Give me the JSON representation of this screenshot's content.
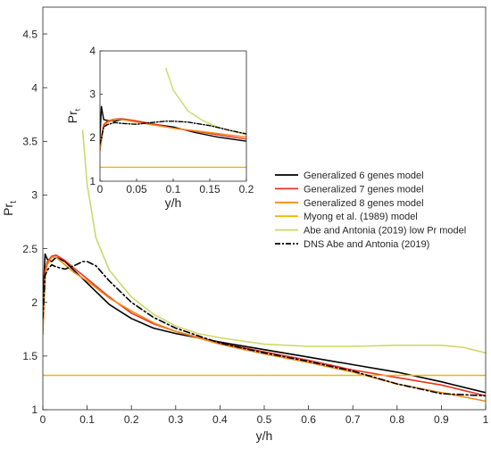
{
  "chart_data": [
    {
      "type": "line",
      "role": "main",
      "xlabel": "y/h",
      "ylabel": "Pr",
      "ylabel_sub": "t",
      "xlim": [
        0,
        1
      ],
      "ylim": [
        1,
        4.75
      ],
      "xticks": [
        "0",
        "0.1",
        "0.2",
        "0.3",
        "0.4",
        "0.5",
        "0.6",
        "0.7",
        "0.8",
        "0.9",
        "1"
      ],
      "yticks": [
        "1",
        "1.5",
        "2",
        "2.5",
        "3",
        "3.5",
        "4",
        "4.5"
      ],
      "grid": false,
      "legend_position": "center-right",
      "series": [
        {
          "name": "Generalized 6 genes model",
          "color": "#000000",
          "dash": "solid",
          "x": [
            0,
            0.005,
            0.01,
            0.02,
            0.03,
            0.05,
            0.07,
            0.1,
            0.15,
            0.2,
            0.25,
            0.3,
            0.4,
            0.5,
            0.6,
            0.7,
            0.8,
            0.9,
            1.0
          ],
          "y": [
            2.0,
            2.45,
            2.4,
            2.38,
            2.42,
            2.38,
            2.3,
            2.18,
            1.98,
            1.85,
            1.76,
            1.71,
            1.63,
            1.56,
            1.49,
            1.42,
            1.35,
            1.26,
            1.16
          ]
        },
        {
          "name": "Generalized 7 genes model",
          "color": "#e8321f",
          "dash": "solid",
          "x": [
            0,
            0.005,
            0.01,
            0.02,
            0.03,
            0.05,
            0.07,
            0.1,
            0.15,
            0.2,
            0.25,
            0.3,
            0.4,
            0.5,
            0.6,
            0.7,
            0.8,
            0.9,
            1.0
          ],
          "y": [
            1.8,
            2.3,
            2.38,
            2.43,
            2.44,
            2.39,
            2.32,
            2.22,
            2.05,
            1.9,
            1.8,
            1.73,
            1.62,
            1.54,
            1.46,
            1.37,
            1.3,
            1.23,
            1.13
          ]
        },
        {
          "name": "Generalized 8 genes model",
          "color": "#f28a1a",
          "dash": "solid",
          "x": [
            0,
            0.005,
            0.01,
            0.02,
            0.03,
            0.05,
            0.07,
            0.1,
            0.15,
            0.2,
            0.25,
            0.3,
            0.4,
            0.5,
            0.6,
            0.7,
            0.8,
            0.9,
            1.0
          ],
          "y": [
            1.7,
            2.25,
            2.35,
            2.42,
            2.42,
            2.35,
            2.28,
            2.2,
            2.04,
            1.92,
            1.81,
            1.73,
            1.61,
            1.52,
            1.44,
            1.35,
            1.24,
            1.16,
            1.08
          ]
        },
        {
          "name": "Myong et al. (1989) model",
          "color": "#efb800",
          "dash": "solid",
          "x": [
            0,
            1
          ],
          "y": [
            1.32,
            1.32
          ]
        },
        {
          "name": "Abe and Antonia (2019) low Pr model",
          "color": "#ccd96a",
          "dash": "solid",
          "x": [
            0.09,
            0.1,
            0.12,
            0.15,
            0.2,
            0.25,
            0.3,
            0.35,
            0.4,
            0.45,
            0.5,
            0.6,
            0.7,
            0.8,
            0.9,
            0.95,
            1.0
          ],
          "y": [
            3.6,
            3.1,
            2.6,
            2.3,
            2.05,
            1.89,
            1.78,
            1.71,
            1.67,
            1.64,
            1.61,
            1.59,
            1.59,
            1.6,
            1.6,
            1.58,
            1.53
          ]
        },
        {
          "name": "DNS Abe and Antonia (2019)",
          "color": "#000000",
          "dash": "dashdot",
          "x": [
            0,
            0.005,
            0.01,
            0.02,
            0.03,
            0.05,
            0.07,
            0.09,
            0.1,
            0.12,
            0.15,
            0.2,
            0.25,
            0.3,
            0.4,
            0.5,
            0.6,
            0.7,
            0.8,
            0.9,
            1.0
          ],
          "y": [
            1.85,
            2.25,
            2.3,
            2.35,
            2.33,
            2.31,
            2.34,
            2.38,
            2.38,
            2.34,
            2.2,
            2.0,
            1.86,
            1.76,
            1.62,
            1.53,
            1.45,
            1.36,
            1.24,
            1.15,
            1.13
          ]
        }
      ]
    },
    {
      "type": "line",
      "role": "inset",
      "xlabel": "y/h",
      "ylabel": "Pr",
      "ylabel_sub": "t",
      "xlim": [
        0,
        0.2
      ],
      "ylim": [
        1,
        4
      ],
      "xticks": [
        "0",
        "0.05",
        "0.1",
        "0.15",
        "0.2"
      ],
      "yticks": [
        "1",
        "2",
        "3",
        "4"
      ],
      "series": [
        {
          "color": "#000000",
          "dash": "solid",
          "x": [
            0,
            0.002,
            0.005,
            0.01,
            0.02,
            0.03,
            0.05,
            0.07,
            0.1,
            0.13,
            0.16,
            0.2
          ],
          "y": [
            2.0,
            2.72,
            2.42,
            2.4,
            2.38,
            2.42,
            2.38,
            2.32,
            2.25,
            2.12,
            2.02,
            1.92
          ]
        },
        {
          "color": "#e8321f",
          "dash": "solid",
          "x": [
            0,
            0.005,
            0.01,
            0.02,
            0.03,
            0.05,
            0.07,
            0.1,
            0.13,
            0.16,
            0.2
          ],
          "y": [
            1.8,
            2.3,
            2.38,
            2.43,
            2.44,
            2.39,
            2.33,
            2.22,
            2.15,
            2.07,
            1.97
          ]
        },
        {
          "color": "#f28a1a",
          "dash": "solid",
          "x": [
            0,
            0.005,
            0.01,
            0.02,
            0.03,
            0.05,
            0.07,
            0.1,
            0.13,
            0.16,
            0.2
          ],
          "y": [
            1.7,
            2.25,
            2.35,
            2.42,
            2.42,
            2.36,
            2.3,
            2.22,
            2.16,
            2.1,
            2.02
          ]
        },
        {
          "color": "#efb800",
          "dash": "solid",
          "x": [
            0,
            0.2
          ],
          "y": [
            1.32,
            1.32
          ]
        },
        {
          "color": "#ccd96a",
          "dash": "solid",
          "x": [
            0.09,
            0.1,
            0.12,
            0.14,
            0.16,
            0.18,
            0.2
          ],
          "y": [
            3.6,
            3.1,
            2.62,
            2.4,
            2.25,
            2.15,
            2.07
          ]
        },
        {
          "color": "#000000",
          "dash": "dashdot",
          "x": [
            0,
            0.005,
            0.01,
            0.02,
            0.03,
            0.05,
            0.07,
            0.09,
            0.1,
            0.12,
            0.15,
            0.18,
            0.2
          ],
          "y": [
            1.85,
            2.25,
            2.3,
            2.35,
            2.33,
            2.31,
            2.35,
            2.38,
            2.38,
            2.36,
            2.28,
            2.16,
            2.09
          ]
        }
      ]
    }
  ]
}
